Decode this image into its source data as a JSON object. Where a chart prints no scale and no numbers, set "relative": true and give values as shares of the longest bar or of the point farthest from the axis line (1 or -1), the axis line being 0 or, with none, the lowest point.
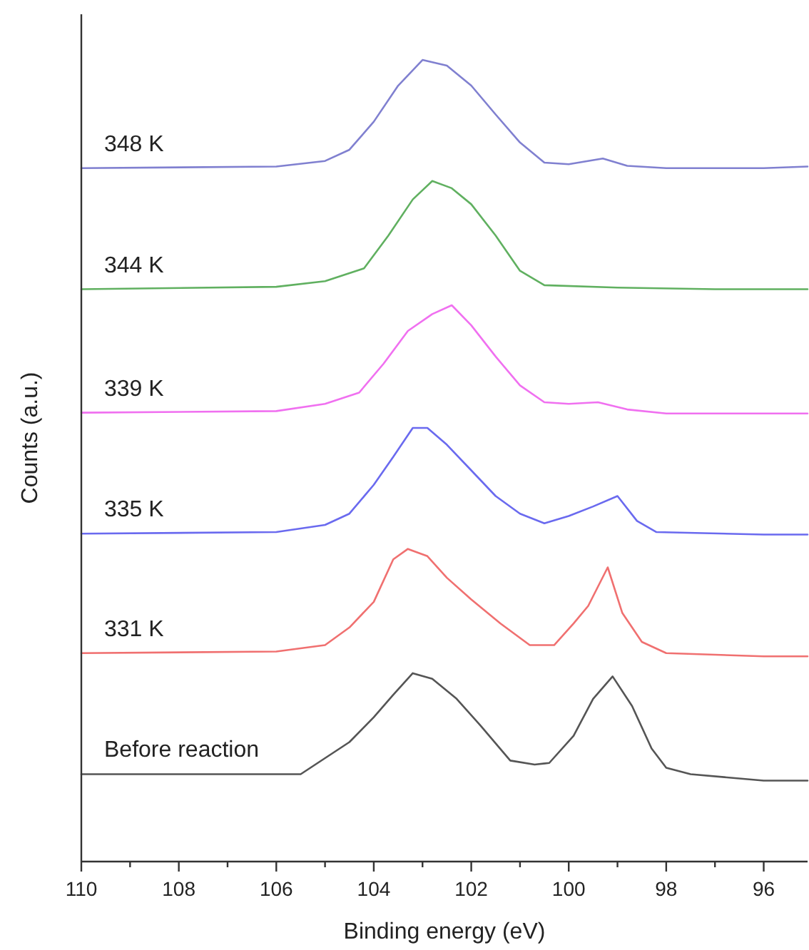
{
  "chart_data": {
    "type": "line",
    "relative": true,
    "xlabel": "Binding energy (eV)",
    "ylabel": "Counts (a.u.)",
    "xlim": [
      110,
      95.1
    ],
    "xticks": [
      110,
      {
        "value": 109,
        "label": null
      },
      108,
      {
        "value": 107,
        "label": null
      },
      106,
      {
        "value": 105,
        "label": null
      },
      104,
      {
        "value": 103,
        "label": null
      },
      102,
      {
        "value": 101,
        "label": null
      },
      100,
      {
        "value": 99,
        "label": null
      },
      98,
      {
        "value": 97,
        "label": null
      },
      96
    ],
    "tick_labels": "x",
    "grid": false,
    "legend": false,
    "marker": "none",
    "line_style": "solid",
    "series": [
      {
        "name": "Before reaction",
        "color": "#555555",
        "x": [
          110,
          105.5,
          104.5,
          104,
          103.6,
          103.2,
          102.8,
          102.3,
          101.8,
          101.2,
          100.7,
          100.4,
          99.9,
          99.5,
          99.1,
          98.7,
          98.3,
          98,
          97.5,
          96,
          95.1
        ],
        "values": [
          0.109,
          0.109,
          0.149,
          0.18,
          0.208,
          0.235,
          0.228,
          0.203,
          0.169,
          0.126,
          0.121,
          0.123,
          0.157,
          0.203,
          0.231,
          0.194,
          0.141,
          0.117,
          0.109,
          0.101,
          0.101
        ]
      },
      {
        "name": "331 K",
        "color": "#f07070",
        "x": [
          110,
          106,
          105,
          104.5,
          104,
          103.6,
          103.3,
          102.9,
          102.5,
          102,
          101.4,
          100.8,
          100.3,
          99.9,
          99.6,
          99.2,
          98.9,
          98.5,
          98,
          96,
          95.1
        ],
        "values": [
          0.26,
          0.262,
          0.27,
          0.292,
          0.324,
          0.377,
          0.39,
          0.381,
          0.354,
          0.327,
          0.297,
          0.27,
          0.27,
          0.297,
          0.319,
          0.367,
          0.31,
          0.274,
          0.26,
          0.256,
          0.256
        ]
      },
      {
        "name": "335 K",
        "color": "#6a6aef",
        "x": [
          110,
          106,
          105,
          104.5,
          104,
          103.6,
          103.2,
          102.9,
          102.5,
          102,
          101.5,
          101,
          100.5,
          100,
          99.5,
          99,
          98.6,
          98.2,
          96,
          95.1
        ],
        "values": [
          0.409,
          0.411,
          0.42,
          0.434,
          0.47,
          0.505,
          0.541,
          0.541,
          0.52,
          0.488,
          0.456,
          0.434,
          0.422,
          0.431,
          0.443,
          0.456,
          0.425,
          0.411,
          0.408,
          0.408
        ]
      },
      {
        "name": "339 K",
        "color": "#f070f0",
        "x": [
          110,
          106,
          105,
          104.3,
          103.8,
          103.3,
          102.8,
          102.4,
          102,
          101.5,
          101,
          100.5,
          100,
          99.4,
          98.8,
          98,
          96,
          95.1
        ],
        "values": [
          0.56,
          0.562,
          0.571,
          0.585,
          0.621,
          0.662,
          0.683,
          0.694,
          0.669,
          0.63,
          0.594,
          0.573,
          0.571,
          0.573,
          0.564,
          0.559,
          0.559,
          0.559
        ]
      },
      {
        "name": "344 K",
        "color": "#60b060",
        "x": [
          110,
          106,
          105,
          104.2,
          103.7,
          103.2,
          102.8,
          102.4,
          102,
          101.5,
          101,
          100.5,
          99,
          97,
          95.1
        ],
        "values": [
          0.714,
          0.717,
          0.724,
          0.74,
          0.781,
          0.826,
          0.849,
          0.84,
          0.82,
          0.781,
          0.737,
          0.719,
          0.716,
          0.714,
          0.714
        ]
      },
      {
        "name": "348 K",
        "color": "#8080d0",
        "x": [
          110,
          106,
          105,
          104.5,
          104,
          103.5,
          103,
          102.5,
          102,
          101.5,
          101,
          100.5,
          100,
          99.3,
          98.8,
          98,
          96,
          95.1
        ],
        "values": [
          0.865,
          0.867,
          0.874,
          0.888,
          0.923,
          0.968,
          1.0,
          0.993,
          0.968,
          0.932,
          0.897,
          0.872,
          0.87,
          0.877,
          0.868,
          0.865,
          0.865,
          0.867
        ]
      }
    ]
  }
}
